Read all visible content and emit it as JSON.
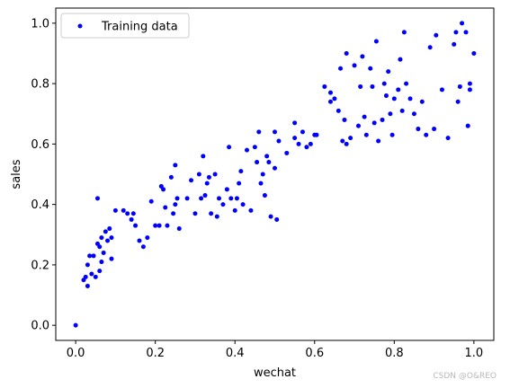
{
  "chart_data": {
    "type": "scatter",
    "xlabel": "wechat",
    "ylabel": "sales",
    "xlim": [
      -0.05,
      1.05
    ],
    "ylim": [
      -0.05,
      1.05
    ],
    "xticks": [
      "0.0",
      "0.2",
      "0.4",
      "0.6",
      "0.8",
      "1.0"
    ],
    "yticks": [
      "0.0",
      "0.2",
      "0.4",
      "0.6",
      "0.8",
      "1.0"
    ],
    "grid": false,
    "legend_position": "top-left",
    "series": [
      {
        "name": "Training data",
        "color": "#0000ff",
        "marker": "circle",
        "points": [
          [
            0.0,
            0.0
          ],
          [
            0.02,
            0.15
          ],
          [
            0.025,
            0.16
          ],
          [
            0.03,
            0.13
          ],
          [
            0.03,
            0.2
          ],
          [
            0.035,
            0.23
          ],
          [
            0.04,
            0.17
          ],
          [
            0.045,
            0.23
          ],
          [
            0.05,
            0.16
          ],
          [
            0.055,
            0.42
          ],
          [
            0.055,
            0.27
          ],
          [
            0.06,
            0.18
          ],
          [
            0.06,
            0.26
          ],
          [
            0.065,
            0.29
          ],
          [
            0.065,
            0.21
          ],
          [
            0.07,
            0.24
          ],
          [
            0.075,
            0.31
          ],
          [
            0.08,
            0.28
          ],
          [
            0.085,
            0.32
          ],
          [
            0.09,
            0.22
          ],
          [
            0.09,
            0.29
          ],
          [
            0.1,
            0.38
          ],
          [
            0.12,
            0.38
          ],
          [
            0.13,
            0.37
          ],
          [
            0.14,
            0.35
          ],
          [
            0.145,
            0.37
          ],
          [
            0.15,
            0.33
          ],
          [
            0.16,
            0.28
          ],
          [
            0.17,
            0.26
          ],
          [
            0.18,
            0.29
          ],
          [
            0.19,
            0.41
          ],
          [
            0.2,
            0.33
          ],
          [
            0.21,
            0.33
          ],
          [
            0.215,
            0.46
          ],
          [
            0.22,
            0.45
          ],
          [
            0.225,
            0.39
          ],
          [
            0.23,
            0.33
          ],
          [
            0.24,
            0.49
          ],
          [
            0.245,
            0.37
          ],
          [
            0.25,
            0.53
          ],
          [
            0.25,
            0.4
          ],
          [
            0.255,
            0.42
          ],
          [
            0.26,
            0.32
          ],
          [
            0.28,
            0.42
          ],
          [
            0.29,
            0.48
          ],
          [
            0.3,
            0.37
          ],
          [
            0.31,
            0.5
          ],
          [
            0.315,
            0.42
          ],
          [
            0.32,
            0.56
          ],
          [
            0.325,
            0.43
          ],
          [
            0.33,
            0.47
          ],
          [
            0.335,
            0.49
          ],
          [
            0.34,
            0.37
          ],
          [
            0.35,
            0.5
          ],
          [
            0.355,
            0.36
          ],
          [
            0.36,
            0.42
          ],
          [
            0.37,
            0.4
          ],
          [
            0.38,
            0.45
          ],
          [
            0.385,
            0.59
          ],
          [
            0.39,
            0.42
          ],
          [
            0.4,
            0.38
          ],
          [
            0.405,
            0.42
          ],
          [
            0.41,
            0.47
          ],
          [
            0.415,
            0.51
          ],
          [
            0.42,
            0.4
          ],
          [
            0.43,
            0.58
          ],
          [
            0.44,
            0.38
          ],
          [
            0.45,
            0.59
          ],
          [
            0.455,
            0.54
          ],
          [
            0.46,
            0.64
          ],
          [
            0.465,
            0.47
          ],
          [
            0.47,
            0.5
          ],
          [
            0.475,
            0.43
          ],
          [
            0.48,
            0.56
          ],
          [
            0.485,
            0.54
          ],
          [
            0.49,
            0.36
          ],
          [
            0.5,
            0.52
          ],
          [
            0.505,
            0.35
          ],
          [
            0.51,
            0.61
          ],
          [
            0.5,
            0.64
          ],
          [
            0.53,
            0.57
          ],
          [
            0.55,
            0.62
          ],
          [
            0.55,
            0.67
          ],
          [
            0.56,
            0.6
          ],
          [
            0.57,
            0.64
          ],
          [
            0.58,
            0.59
          ],
          [
            0.59,
            0.6
          ],
          [
            0.6,
            0.63
          ],
          [
            0.605,
            0.63
          ],
          [
            0.625,
            0.79
          ],
          [
            0.64,
            0.77
          ],
          [
            0.64,
            0.74
          ],
          [
            0.65,
            0.75
          ],
          [
            0.66,
            0.71
          ],
          [
            0.665,
            0.85
          ],
          [
            0.67,
            0.61
          ],
          [
            0.675,
            0.68
          ],
          [
            0.68,
            0.6
          ],
          [
            0.68,
            0.9
          ],
          [
            0.69,
            0.62
          ],
          [
            0.7,
            0.86
          ],
          [
            0.71,
            0.66
          ],
          [
            0.715,
            0.79
          ],
          [
            0.72,
            0.89
          ],
          [
            0.725,
            0.69
          ],
          [
            0.73,
            0.63
          ],
          [
            0.74,
            0.85
          ],
          [
            0.745,
            0.79
          ],
          [
            0.75,
            0.67
          ],
          [
            0.755,
            0.94
          ],
          [
            0.76,
            0.61
          ],
          [
            0.77,
            0.68
          ],
          [
            0.775,
            0.8
          ],
          [
            0.78,
            0.76
          ],
          [
            0.785,
            0.84
          ],
          [
            0.79,
            0.7
          ],
          [
            0.795,
            0.63
          ],
          [
            0.8,
            0.75
          ],
          [
            0.81,
            0.78
          ],
          [
            0.815,
            0.88
          ],
          [
            0.82,
            0.71
          ],
          [
            0.825,
            0.97
          ],
          [
            0.83,
            0.8
          ],
          [
            0.84,
            0.75
          ],
          [
            0.85,
            0.7
          ],
          [
            0.86,
            0.65
          ],
          [
            0.87,
            0.74
          ],
          [
            0.88,
            0.63
          ],
          [
            0.89,
            0.92
          ],
          [
            0.9,
            0.65
          ],
          [
            0.905,
            0.96
          ],
          [
            0.92,
            0.78
          ],
          [
            0.935,
            0.62
          ],
          [
            0.95,
            0.93
          ],
          [
            0.955,
            0.97
          ],
          [
            0.96,
            0.74
          ],
          [
            0.965,
            0.79
          ],
          [
            0.97,
            1.0
          ],
          [
            0.98,
            0.97
          ],
          [
            0.985,
            0.66
          ],
          [
            0.99,
            0.8
          ],
          [
            0.99,
            0.78
          ],
          [
            1.0,
            0.9
          ]
        ]
      }
    ]
  },
  "watermark": "CSDN @O&REO"
}
